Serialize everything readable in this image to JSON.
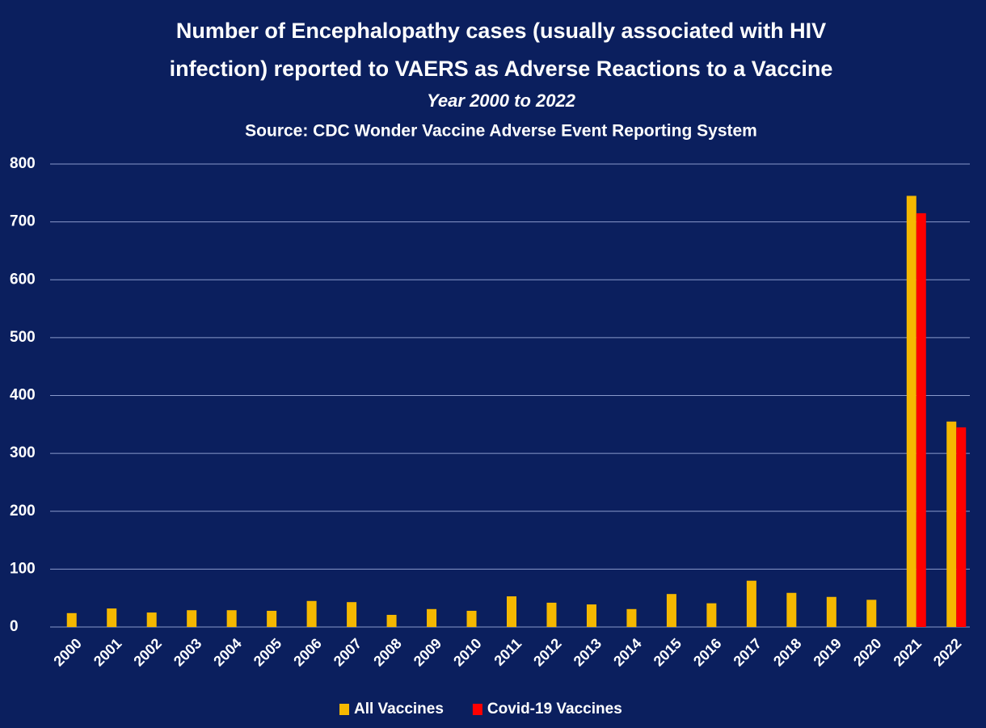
{
  "chart_data": {
    "type": "bar",
    "title": [
      "Number of Encephalopathy cases (usually associated with HIV",
      "infection) reported to VAERS as Adverse Reactions to a Vaccine"
    ],
    "subtitle": "Year 2000 to 2022",
    "source": "Source: CDC Wonder Vaccine Adverse Event Reporting System",
    "categories": [
      "2000",
      "2001",
      "2002",
      "2003",
      "2004",
      "2005",
      "2006",
      "2007",
      "2008",
      "2009",
      "2010",
      "2011",
      "2012",
      "2013",
      "2014",
      "2015",
      "2016",
      "2017",
      "2018",
      "2019",
      "2020",
      "2021",
      "2022"
    ],
    "series": [
      {
        "name": "All Vaccines",
        "color": "#f5b800",
        "values": [
          24,
          32,
          25,
          29,
          29,
          28,
          45,
          43,
          21,
          31,
          28,
          53,
          42,
          39,
          31,
          57,
          41,
          80,
          59,
          52,
          47,
          745,
          355
        ]
      },
      {
        "name": "Covid-19 Vaccines",
        "color": "#ff0000",
        "values": [
          null,
          null,
          null,
          null,
          null,
          null,
          null,
          null,
          null,
          null,
          null,
          null,
          null,
          null,
          null,
          null,
          null,
          null,
          null,
          null,
          null,
          715,
          345
        ]
      }
    ],
    "ylim": [
      0,
      800
    ],
    "yticks": [
      0,
      100,
      200,
      300,
      400,
      500,
      600,
      700,
      800
    ],
    "grid": true,
    "legend": "bottom"
  }
}
